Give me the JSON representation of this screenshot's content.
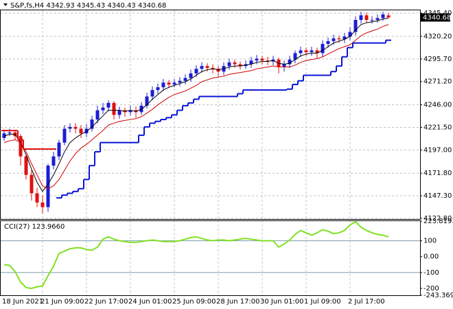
{
  "chart_data": [
    {
      "type": "candlestick",
      "title": "S&P,fs,H4",
      "categories": [
        "18 Jun 2021",
        null,
        null,
        null,
        null,
        null,
        null,
        "21 Jun 09:00",
        null,
        null,
        null,
        null,
        null,
        null,
        null,
        "22 Jun 17:00",
        null,
        null,
        null,
        null,
        null,
        null,
        null,
        "24 Jun 01:00",
        null,
        null,
        null,
        null,
        null,
        null,
        null,
        "25 Jun 09:00",
        null,
        null,
        null,
        null,
        null,
        null,
        null,
        "28 Jun 17:00",
        null,
        null,
        null,
        null,
        null,
        null,
        null,
        "30 Jun 01:00",
        null,
        null,
        null,
        null,
        null,
        null,
        null,
        "1 Jul 09:00",
        null,
        null,
        null,
        null,
        null,
        null,
        null,
        "2 Jul 17:00",
        null,
        null,
        null,
        null,
        null,
        null,
        null
      ],
      "open": [
        4210,
        4215,
        4216,
        4212,
        4190,
        4170,
        4150,
        4140,
        4135,
        4180,
        4190,
        4205,
        4220,
        4222,
        4220,
        4215,
        4220,
        4230,
        4240,
        4243,
        4248,
        4235,
        4240,
        4238,
        4240,
        4238,
        4245,
        4255,
        4262,
        4265,
        4270,
        4268,
        4270,
        4272,
        4275,
        4280,
        4285,
        4288,
        4286,
        4285,
        4282,
        4288,
        4292,
        4290,
        4288,
        4290,
        4294,
        4296,
        4294,
        4293,
        4295,
        4287,
        4290,
        4295,
        4302,
        4305,
        4303,
        4305,
        4302,
        4312,
        4315,
        4318,
        4317,
        4320,
        4325,
        4338,
        4343,
        4338,
        4338,
        4340,
        4342.93
      ],
      "high": [
        4219,
        4220,
        4219,
        4214,
        4192,
        4175,
        4156,
        4148,
        4182,
        4195,
        4208,
        4224,
        4226,
        4226,
        4224,
        4225,
        4234,
        4245,
        4248,
        4251,
        4250,
        4244,
        4243,
        4245,
        4244,
        4249,
        4259,
        4266,
        4269,
        4274,
        4273,
        4274,
        4276,
        4279,
        4284,
        4289,
        4292,
        4291,
        4290,
        4288,
        4292,
        4296,
        4295,
        4293,
        4294,
        4298,
        4300,
        4299,
        4298,
        4299,
        4297,
        4294,
        4299,
        4305,
        4309,
        4308,
        4309,
        4308,
        4316,
        4319,
        4322,
        4321,
        4324,
        4330,
        4342,
        4347,
        4346,
        4342,
        4344,
        4347,
        4345.43
      ],
      "low": [
        4207,
        4212,
        4208,
        4180,
        4165,
        4142,
        4135,
        4128,
        4130,
        4176,
        4186,
        4202,
        4216,
        4215,
        4210,
        4211,
        4217,
        4226,
        4236,
        4239,
        4230,
        4231,
        4233,
        4234,
        4232,
        4235,
        4242,
        4251,
        4258,
        4261,
        4264,
        4265,
        4266,
        4268,
        4271,
        4276,
        4281,
        4282,
        4280,
        4277,
        4278,
        4284,
        4286,
        4284,
        4285,
        4286,
        4290,
        4290,
        4289,
        4289,
        4280,
        4282,
        4286,
        4291,
        4298,
        4299,
        4299,
        4296,
        4298,
        4308,
        4311,
        4313,
        4313,
        4316,
        4321,
        4334,
        4335,
        4334,
        4335,
        4337,
        4340.43
      ],
      "close": [
        4215,
        4216,
        4212,
        4190,
        4170,
        4150,
        4140,
        4135,
        4180,
        4190,
        4205,
        4220,
        4222,
        4220,
        4215,
        4220,
        4230,
        4240,
        4243,
        4248,
        4235,
        4240,
        4238,
        4240,
        4238,
        4245,
        4255,
        4262,
        4265,
        4270,
        4268,
        4270,
        4272,
        4275,
        4280,
        4285,
        4288,
        4286,
        4285,
        4282,
        4288,
        4292,
        4290,
        4288,
        4290,
        4294,
        4296,
        4294,
        4293,
        4295,
        4287,
        4290,
        4295,
        4302,
        4305,
        4303,
        4305,
        4302,
        4312,
        4315,
        4318,
        4317,
        4320,
        4325,
        4338,
        4343,
        4338,
        4338,
        4340,
        4344,
        4340.68
      ],
      "up_color": "#1c1cd6",
      "down_color": "#e01010",
      "overlays": [
        {
          "color": "#000000",
          "width": 1,
          "step": false,
          "values": [
            4212,
            4214,
            4214,
            4205,
            4192,
            4176,
            4162,
            4152,
            4160,
            4170,
            4182,
            4195,
            4205,
            4210,
            4214,
            4217,
            4222,
            4228,
            4234,
            4240,
            4240,
            4240,
            4239,
            4240,
            4239,
            4241,
            4246,
            4252,
            4257,
            4262,
            4265,
            4267,
            4269,
            4271,
            4274,
            4278,
            4282,
            4284,
            4285,
            4284,
            4285,
            4287,
            4288,
            4288,
            4289,
            4290,
            4292,
            4293,
            4293,
            4294,
            4291,
            4290,
            4291,
            4295,
            4299,
            4301,
            4302,
            4302,
            4305,
            4309,
            4313,
            4315,
            4317,
            4320,
            4327,
            4333,
            4335,
            4336,
            4337,
            4339,
            4340
          ]
        },
        {
          "color": "#d00000",
          "width": 1,
          "step": false,
          "values": [
            4205,
            4207,
            4208,
            4205,
            4195,
            4182,
            4170,
            4158,
            4155,
            4158,
            4165,
            4175,
            4185,
            4193,
            4199,
            4203,
            4208,
            4213,
            4218,
            4224,
            4226,
            4228,
            4229,
            4230,
            4231,
            4233,
            4237,
            4241,
            4246,
            4250,
            4254,
            4257,
            4259,
            4261,
            4264,
            4267,
            4271,
            4273,
            4275,
            4276,
            4277,
            4279,
            4280,
            4281,
            4282,
            4283,
            4285,
            4286,
            4287,
            4288,
            4287,
            4287,
            4287,
            4289,
            4292,
            4294,
            4295,
            4296,
            4298,
            4301,
            4304,
            4307,
            4309,
            4311,
            4316,
            4321,
            4324,
            4326,
            4328,
            4331,
            4333
          ]
        },
        {
          "color": "#0a14d8",
          "width": 2,
          "step": true,
          "values": [
            null,
            null,
            null,
            null,
            null,
            null,
            null,
            null,
            null,
            null,
            4145,
            4148,
            4150,
            4152,
            4155,
            4165,
            4180,
            4195,
            4205,
            4205,
            4205,
            4205,
            4205,
            4205,
            4205,
            4213,
            4222,
            4226,
            4228,
            4230,
            4232,
            4235,
            4240,
            4245,
            4248,
            4252,
            4255,
            4255,
            4255,
            4255,
            4255,
            4255,
            4255,
            4258,
            4262,
            4262,
            4262,
            4262,
            4262,
            4262,
            4262,
            4262,
            4263,
            4268,
            4272,
            4278,
            4278,
            4278,
            4278,
            4278,
            4282,
            4288,
            4298,
            4308,
            4313,
            4313,
            4313,
            4313,
            4313,
            4313,
            4316
          ]
        },
        {
          "color": "#e01010",
          "width": 2,
          "step": true,
          "values": [
            4218,
            4218,
            4218,
            4208,
            4198,
            4198,
            4198,
            4198,
            4198,
            4198,
            null,
            null,
            null,
            null,
            null,
            null,
            null,
            null,
            null,
            null,
            null,
            null,
            null,
            null,
            null,
            null,
            null,
            null,
            null,
            null,
            null,
            null,
            null,
            null,
            null,
            null,
            null,
            null,
            null,
            null,
            null,
            null,
            null,
            null,
            null,
            null,
            null,
            null,
            null,
            null,
            null,
            null,
            null,
            null,
            null,
            null,
            null,
            null,
            null,
            null,
            null,
            null,
            null,
            null,
            null,
            null,
            null,
            null,
            null,
            null,
            null
          ]
        }
      ],
      "ylim": [
        4122.8,
        4349.2
      ],
      "yticks": [
        {
          "value": 4345.4,
          "label": "4345.40"
        },
        {
          "value": 4320.2,
          "label": "4320.20"
        },
        {
          "value": 4295.7,
          "label": "4295.70"
        },
        {
          "value": 4271.2,
          "label": "4271.20"
        },
        {
          "value": 4246,
          "label": "4246.00"
        },
        {
          "value": 4221.5,
          "label": "4221.50"
        },
        {
          "value": 4197,
          "label": "4197.00"
        },
        {
          "value": 4171.8,
          "label": "4171.80"
        },
        {
          "value": 4147.3,
          "label": "4147.30"
        },
        {
          "value": 4122.8,
          "label": "4122.80"
        }
      ],
      "grid": true
    },
    {
      "type": "line",
      "title": "CCI(27)",
      "color": "#80e020",
      "values": [
        -50,
        -55,
        -95,
        -160,
        -195,
        -200,
        -190,
        -185,
        -120,
        -60,
        20,
        35,
        50,
        55,
        55,
        45,
        40,
        60,
        110,
        125,
        110,
        100,
        95,
        90,
        90,
        95,
        100,
        105,
        100,
        95,
        95,
        95,
        100,
        110,
        120,
        125,
        115,
        105,
        100,
        105,
        105,
        100,
        105,
        110,
        115,
        110,
        105,
        100,
        100,
        100,
        60,
        80,
        105,
        140,
        165,
        150,
        135,
        150,
        170,
        160,
        145,
        150,
        165,
        200,
        220,
        185,
        165,
        150,
        140,
        135,
        123.966
      ],
      "value_labels": [
        null,
        null,
        null,
        null,
        null,
        null,
        null,
        null,
        null,
        null,
        null,
        null,
        null,
        null,
        null,
        null,
        null,
        null,
        null,
        null,
        null,
        null,
        null,
        null,
        null,
        null,
        null,
        null,
        null,
        null,
        null,
        null,
        null,
        null,
        null,
        null,
        null,
        null,
        null,
        null,
        null,
        null,
        null,
        null,
        null,
        null,
        null,
        null,
        null,
        null,
        null,
        null,
        null,
        null,
        null,
        null,
        null,
        null,
        null,
        null,
        null,
        null,
        null,
        null,
        null,
        null,
        null,
        null,
        null,
        null,
        "123.9660"
      ],
      "levels": [
        100,
        -100
      ],
      "ylim": [
        -243.3697,
        223.8193
      ],
      "yticks": [
        223.8193,
        100,
        {
          "value": 0,
          "label": "0.00"
        },
        -100,
        -200,
        -243.3697
      ]
    }
  ]
}
